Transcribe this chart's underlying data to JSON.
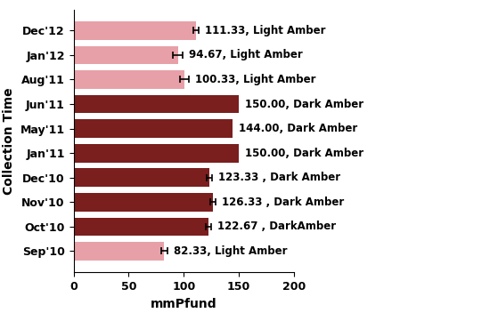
{
  "categories": [
    "Sep'10",
    "Oct'10",
    "Nov'10",
    "Dec'10",
    "Jan'11",
    "May'11",
    "Jun'11",
    "Aug'11",
    "Jan'12",
    "Dec'12"
  ],
  "values": [
    82.33,
    122.67,
    126.33,
    123.33,
    150.0,
    144.0,
    150.0,
    100.33,
    94.67,
    111.33
  ],
  "errors": [
    3.0,
    2.5,
    2.5,
    2.5,
    0.0,
    0.0,
    0.0,
    4.0,
    4.5,
    2.5
  ],
  "labels": [
    "82.33, Light Amber",
    "122.67 , DarkAmber",
    "126.33 , Dark Amber",
    "123.33 , Dark Amber",
    "150.00, Dark Amber",
    "144.00, Dark Amber",
    "150.00, Dark Amber",
    "100.33, Light Amber",
    "94.67, Light Amber",
    "111.33, Light Amber"
  ],
  "colors": [
    "#e8a0a8",
    "#7a1e1e",
    "#7a1e1e",
    "#7a1e1e",
    "#7a1e1e",
    "#7a1e1e",
    "#7a1e1e",
    "#e8a0a8",
    "#e8a0a8",
    "#e8a0a8"
  ],
  "xlabel": "mmPfund",
  "ylabel": "Collection Time",
  "xlim": [
    0,
    200
  ],
  "xticks": [
    0,
    50,
    100,
    150,
    200
  ],
  "bar_height": 0.75,
  "label_fontsize": 8.5,
  "tick_fontsize": 9,
  "axis_label_fontsize": 10
}
